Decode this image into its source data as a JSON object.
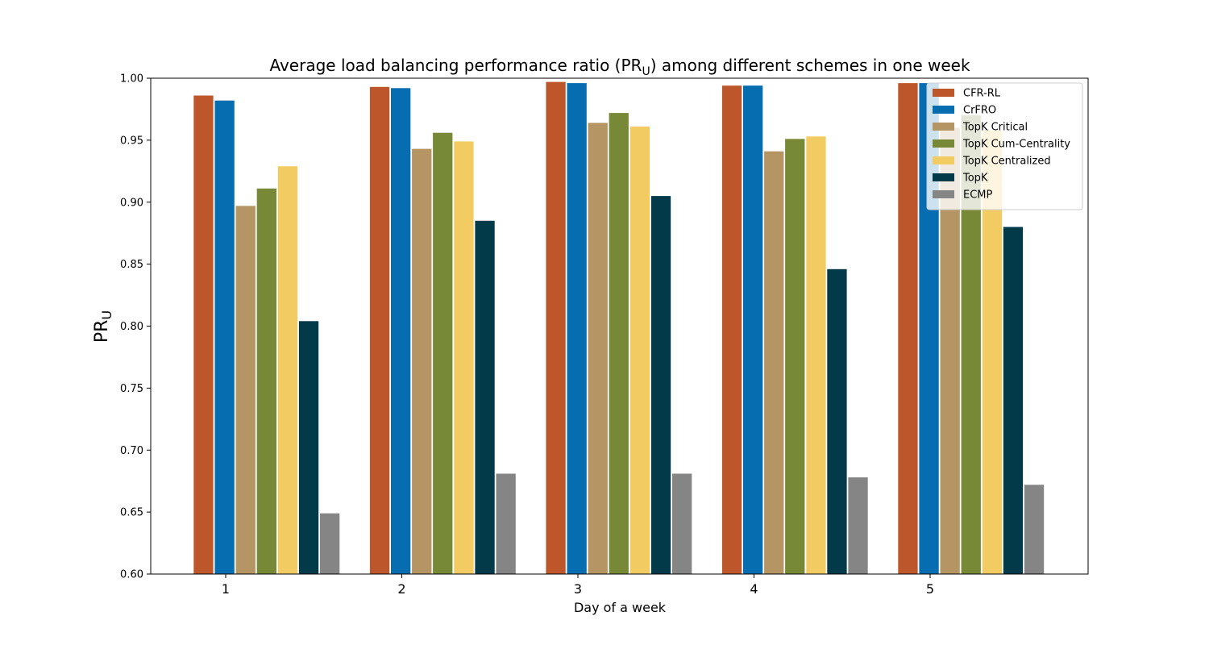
{
  "chart_data": {
    "type": "bar",
    "title_prefix": "Average load balancing performance ratio (PR",
    "title_sub": "U",
    "title_suffix": ") among different schemes in one week",
    "xlabel": "Day of a week",
    "ylabel_main": "PR",
    "ylabel_sub": "U",
    "categories": [
      "1",
      "2",
      "3",
      "4",
      "5"
    ],
    "ylim": [
      0.6,
      1.0
    ],
    "yticks": [
      "0.60",
      "0.65",
      "0.70",
      "0.75",
      "0.80",
      "0.85",
      "0.90",
      "0.95",
      "1.00"
    ],
    "legend_position": "top-right",
    "grid": false,
    "series": [
      {
        "name": "CFR-RL",
        "color": "#bd572b",
        "values": [
          0.986,
          0.993,
          0.997,
          0.994,
          0.996
        ]
      },
      {
        "name": "CrFRO",
        "color": "#066db0",
        "values": [
          0.982,
          0.992,
          0.996,
          0.994,
          0.996
        ]
      },
      {
        "name": "TopK Critical",
        "color": "#b59563",
        "values": [
          0.897,
          0.943,
          0.964,
          0.941,
          0.96
        ]
      },
      {
        "name": "TopK Cum-Centrality",
        "color": "#778937",
        "values": [
          0.911,
          0.956,
          0.972,
          0.951,
          0.97
        ]
      },
      {
        "name": "TopK Centralized",
        "color": "#f2cc63",
        "values": [
          0.929,
          0.949,
          0.961,
          0.953,
          0.958
        ]
      },
      {
        "name": "TopK",
        "color": "#033a4a",
        "values": [
          0.804,
          0.885,
          0.905,
          0.846,
          0.88
        ]
      },
      {
        "name": "ECMP",
        "color": "#858585",
        "values": [
          0.649,
          0.681,
          0.681,
          0.678,
          0.672
        ]
      }
    ]
  }
}
